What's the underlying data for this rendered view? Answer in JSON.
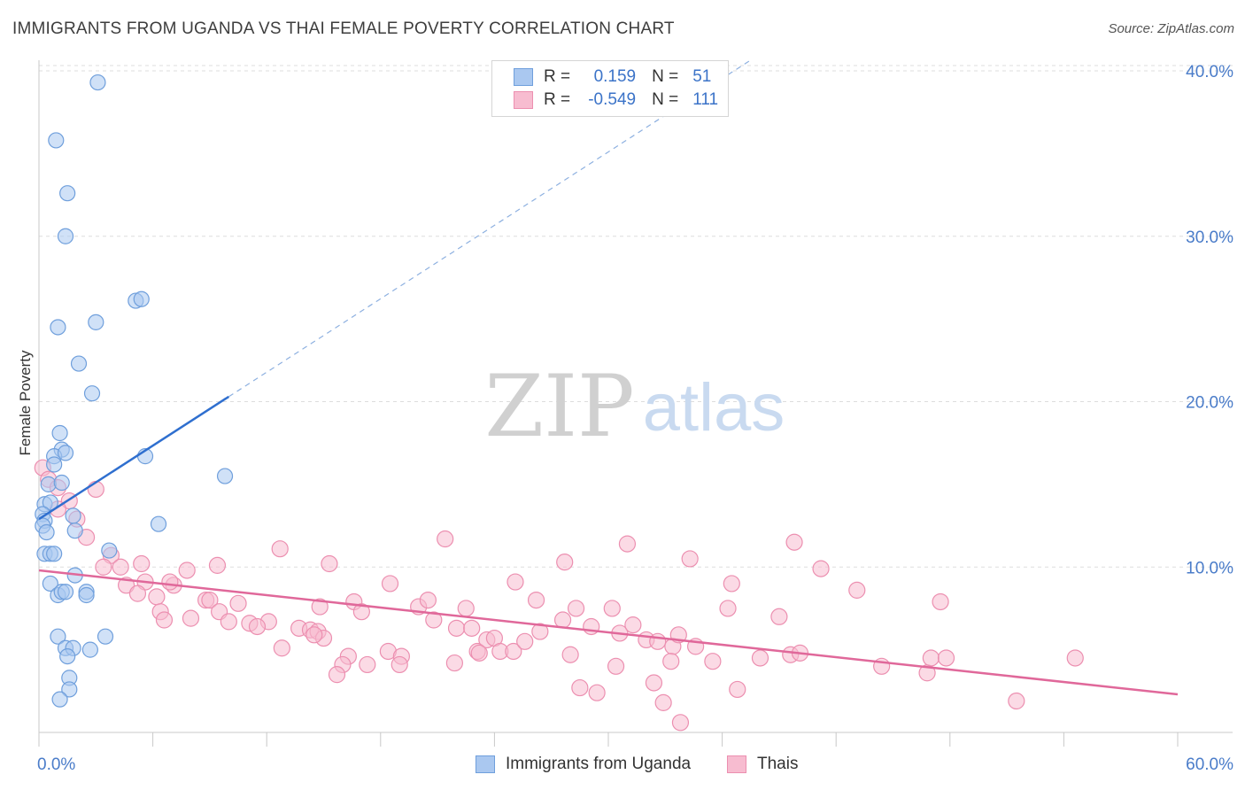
{
  "title": "IMMIGRANTS FROM UGANDA VS THAI FEMALE POVERTY CORRELATION CHART",
  "source": "Source: ZipAtlas.com",
  "watermark": {
    "zip": "ZIP",
    "atlas": "atlas"
  },
  "legend": {
    "rows": [
      {
        "r_label": "R =",
        "r_value": "0.159",
        "n_label": "N =",
        "n_value": "51"
      },
      {
        "r_label": "R =",
        "r_value": "-0.549",
        "n_label": "N =",
        "n_value": "111"
      }
    ]
  },
  "bottom_legend": [
    "Immigrants from Uganda",
    "Thais"
  ],
  "colors": {
    "uganda_fill": "#aac8f0",
    "uganda_stroke": "#6f9fdc",
    "uganda_line": "#2f6fcf",
    "thai_fill": "#f7bcd0",
    "thai_stroke": "#ec8fb0",
    "thai_line": "#e0689a",
    "tick_text": "#4a7cc9",
    "grid": "#dddddd"
  },
  "chart_data": {
    "type": "scatter",
    "title": "IMMIGRANTS FROM UGANDA VS THAI FEMALE POVERTY CORRELATION CHART",
    "xlabel": "",
    "ylabel": "Female Poverty",
    "xlim": [
      0,
      60
    ],
    "ylim": [
      0,
      42
    ],
    "x_tick_labels": [
      "0.0%",
      "60.0%"
    ],
    "y_ticks": [
      10,
      20,
      30,
      40
    ],
    "y_tick_labels": [
      "10.0%",
      "20.0%",
      "30.0%",
      "40.0%"
    ],
    "grid": "horizontal dashed",
    "legend_position": "top-center",
    "series": [
      {
        "name": "Immigrants from Uganda",
        "R": 0.159,
        "N": 51,
        "trend": {
          "x0": 0,
          "y0": 12.9,
          "x1": 10,
          "y1": 20.3,
          "dashed_to_x": 37.5
        },
        "points": [
          [
            3.1,
            39.3
          ],
          [
            0.9,
            35.8
          ],
          [
            1.5,
            32.6
          ],
          [
            1.4,
            30.0
          ],
          [
            5.1,
            26.1
          ],
          [
            5.4,
            26.2
          ],
          [
            3.0,
            24.8
          ],
          [
            1.0,
            24.5
          ],
          [
            2.1,
            22.3
          ],
          [
            2.8,
            20.5
          ],
          [
            1.1,
            18.1
          ],
          [
            1.2,
            17.1
          ],
          [
            0.8,
            16.7
          ],
          [
            1.4,
            16.9
          ],
          [
            5.6,
            16.7
          ],
          [
            0.8,
            16.2
          ],
          [
            9.8,
            15.5
          ],
          [
            0.5,
            15.0
          ],
          [
            1.2,
            15.1
          ],
          [
            0.3,
            13.8
          ],
          [
            0.6,
            13.9
          ],
          [
            0.2,
            13.2
          ],
          [
            0.3,
            12.8
          ],
          [
            0.2,
            12.5
          ],
          [
            1.8,
            13.1
          ],
          [
            6.3,
            12.6
          ],
          [
            0.4,
            12.1
          ],
          [
            1.9,
            12.2
          ],
          [
            0.3,
            10.8
          ],
          [
            0.6,
            10.8
          ],
          [
            0.8,
            10.8
          ],
          [
            3.7,
            11.0
          ],
          [
            1.9,
            9.5
          ],
          [
            0.6,
            9.0
          ],
          [
            2.5,
            8.5
          ],
          [
            1.0,
            8.3
          ],
          [
            1.2,
            8.5
          ],
          [
            1.4,
            8.5
          ],
          [
            2.5,
            8.3
          ],
          [
            1.0,
            5.8
          ],
          [
            3.5,
            5.8
          ],
          [
            1.4,
            5.1
          ],
          [
            1.8,
            5.1
          ],
          [
            2.7,
            5.0
          ],
          [
            1.5,
            4.6
          ],
          [
            1.6,
            3.3
          ],
          [
            1.6,
            2.6
          ],
          [
            1.1,
            2.0
          ]
        ]
      },
      {
        "name": "Thais",
        "R": -0.549,
        "N": 111,
        "trend": {
          "x0": 0,
          "y0": 9.8,
          "x1": 60,
          "y1": 2.3
        },
        "points": [
          [
            0.2,
            16.0
          ],
          [
            0.5,
            15.3
          ],
          [
            1.0,
            14.8
          ],
          [
            1.6,
            14.0
          ],
          [
            1.0,
            13.5
          ],
          [
            3.0,
            14.7
          ],
          [
            2.0,
            12.9
          ],
          [
            2.5,
            11.8
          ],
          [
            3.8,
            10.7
          ],
          [
            3.4,
            10.0
          ],
          [
            4.3,
            10.0
          ],
          [
            5.4,
            10.2
          ],
          [
            5.6,
            9.1
          ],
          [
            4.6,
            8.9
          ],
          [
            7.8,
            9.8
          ],
          [
            6.2,
            8.2
          ],
          [
            7.1,
            8.9
          ],
          [
            9.4,
            10.1
          ],
          [
            5.2,
            8.4
          ],
          [
            6.9,
            9.1
          ],
          [
            8.8,
            8.0
          ],
          [
            6.4,
            7.3
          ],
          [
            9.0,
            8.0
          ],
          [
            10.5,
            7.8
          ],
          [
            6.6,
            6.8
          ],
          [
            8.0,
            6.9
          ],
          [
            9.5,
            7.3
          ],
          [
            11.1,
            6.6
          ],
          [
            12.1,
            6.7
          ],
          [
            10.0,
            6.7
          ],
          [
            11.5,
            6.4
          ],
          [
            12.7,
            11.1
          ],
          [
            13.7,
            6.3
          ],
          [
            12.8,
            5.1
          ],
          [
            14.3,
            6.2
          ],
          [
            14.7,
            6.1
          ],
          [
            15.0,
            5.7
          ],
          [
            15.3,
            10.2
          ],
          [
            14.5,
            5.9
          ],
          [
            14.8,
            7.6
          ],
          [
            16.6,
            7.9
          ],
          [
            17.0,
            7.3
          ],
          [
            16.3,
            4.6
          ],
          [
            16.0,
            4.1
          ],
          [
            17.3,
            4.1
          ],
          [
            15.7,
            3.5
          ],
          [
            18.4,
            4.9
          ],
          [
            18.5,
            9.0
          ],
          [
            19.1,
            4.6
          ],
          [
            19.0,
            4.1
          ],
          [
            20.0,
            7.6
          ],
          [
            20.5,
            8.0
          ],
          [
            21.4,
            11.7
          ],
          [
            21.9,
            4.2
          ],
          [
            20.8,
            6.8
          ],
          [
            22.0,
            6.3
          ],
          [
            22.8,
            6.3
          ],
          [
            22.5,
            7.5
          ],
          [
            23.1,
            4.9
          ],
          [
            23.6,
            5.6
          ],
          [
            24.0,
            5.7
          ],
          [
            24.3,
            4.9
          ],
          [
            25.0,
            4.9
          ],
          [
            23.2,
            4.8
          ],
          [
            25.1,
            9.1
          ],
          [
            26.2,
            8.0
          ],
          [
            25.6,
            5.5
          ],
          [
            26.4,
            6.1
          ],
          [
            27.7,
            10.3
          ],
          [
            27.6,
            6.8
          ],
          [
            28.0,
            4.7
          ],
          [
            28.3,
            7.5
          ],
          [
            28.5,
            2.7
          ],
          [
            29.4,
            2.4
          ],
          [
            29.1,
            6.4
          ],
          [
            30.2,
            7.5
          ],
          [
            30.6,
            6.0
          ],
          [
            30.4,
            4.0
          ],
          [
            31.0,
            11.4
          ],
          [
            31.3,
            6.5
          ],
          [
            32.0,
            5.6
          ],
          [
            32.4,
            3.0
          ],
          [
            32.6,
            5.5
          ],
          [
            32.9,
            1.8
          ],
          [
            33.4,
            5.2
          ],
          [
            33.7,
            5.9
          ],
          [
            33.3,
            4.3
          ],
          [
            34.3,
            10.5
          ],
          [
            34.6,
            5.2
          ],
          [
            33.8,
            0.6
          ],
          [
            36.3,
            7.5
          ],
          [
            36.5,
            9.0
          ],
          [
            35.5,
            4.3
          ],
          [
            36.8,
            2.6
          ],
          [
            38.0,
            4.5
          ],
          [
            39.0,
            7.0
          ],
          [
            39.6,
            4.7
          ],
          [
            40.1,
            4.8
          ],
          [
            39.8,
            11.5
          ],
          [
            41.2,
            9.9
          ],
          [
            43.1,
            8.6
          ],
          [
            44.4,
            4.0
          ],
          [
            46.8,
            3.6
          ],
          [
            47.5,
            7.9
          ],
          [
            47.0,
            4.5
          ],
          [
            47.8,
            4.5
          ],
          [
            51.5,
            1.9
          ],
          [
            54.6,
            4.5
          ]
        ]
      }
    ]
  }
}
